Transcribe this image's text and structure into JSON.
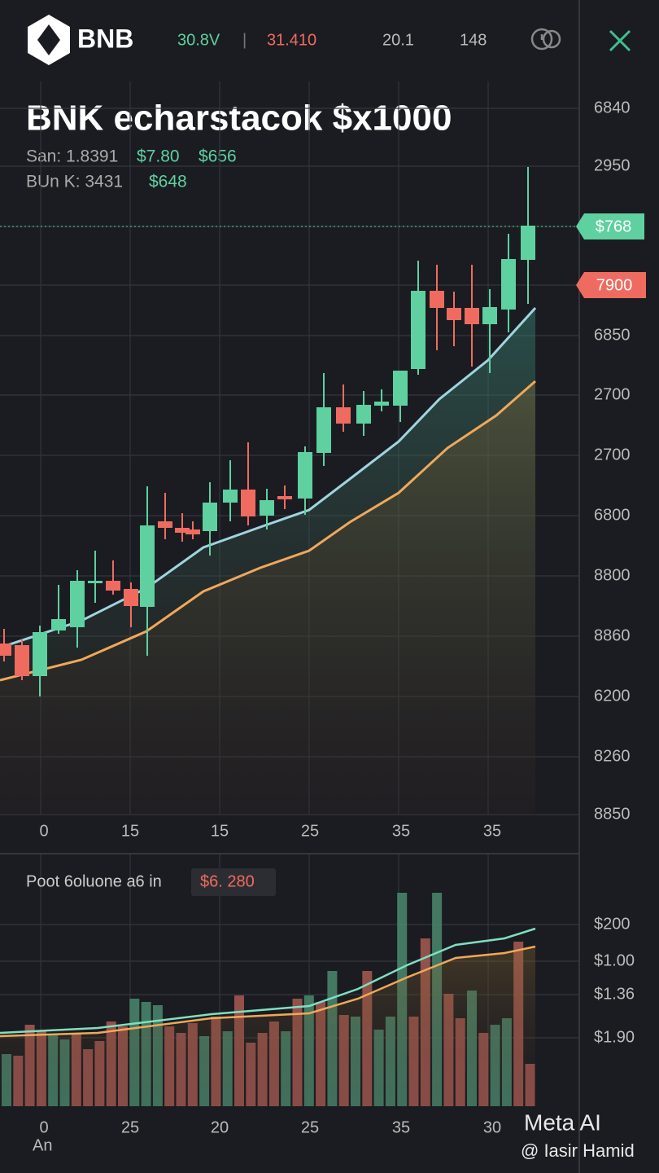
{
  "header": {
    "brand": "BNB",
    "stat_1": "30.8V",
    "divider": "|",
    "stat_2": "31.410",
    "stat_3": "20.1",
    "stat_4": "148"
  },
  "title": "BNK echarstacok $x1000",
  "info_rows": [
    [
      "San: 1.8391",
      "$7.80",
      "$656"
    ],
    [
      "BUn K: 3431",
      "$648"
    ]
  ],
  "price_axis": [
    "6840",
    "2950",
    "6850",
    "2700",
    "2700",
    "6800",
    "8800",
    "8860",
    "6200",
    "8260",
    "8850"
  ],
  "price_tags": {
    "current": "$768",
    "secondary": "7900"
  },
  "time_axis": [
    "0",
    "15",
    "15",
    "25",
    "35",
    "35"
  ],
  "volume_panel": {
    "label": "Poot 6oluone a6 in",
    "badge": "$6. 280",
    "axis": [
      "$200",
      "$1.00",
      "$1.36",
      "$1.90"
    ],
    "time_axis": [
      "0",
      "25",
      "20",
      "25",
      "35",
      "30"
    ],
    "footer": "An"
  },
  "watermark": {
    "brand": "Meta AI",
    "author": "@ Iasir Hamid"
  }
}
